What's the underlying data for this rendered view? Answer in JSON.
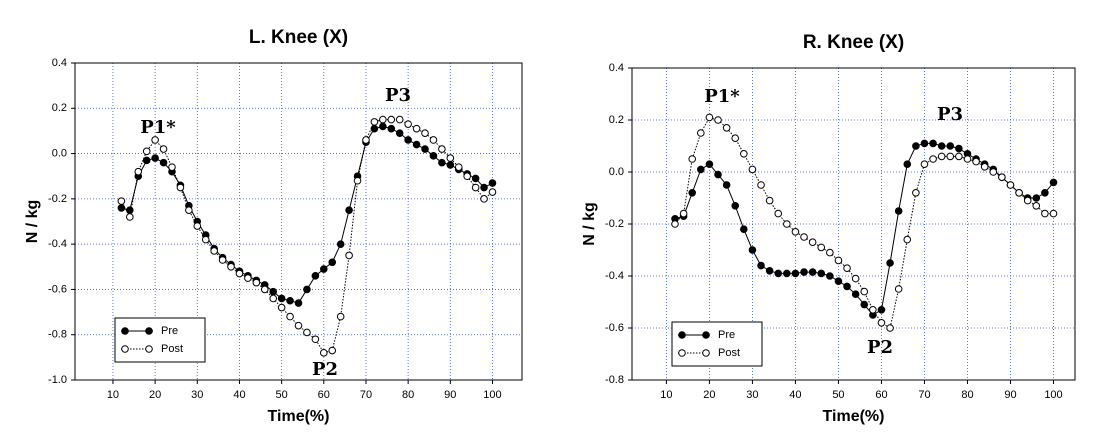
{
  "chart_data": [
    {
      "type": "line",
      "title": "L. Knee (X)",
      "xlabel": "Time(%)",
      "ylabel": "N / kg",
      "x": [
        12,
        14,
        16,
        18,
        20,
        22,
        24,
        26,
        28,
        30,
        32,
        34,
        36,
        38,
        40,
        42,
        44,
        46,
        48,
        50,
        52,
        54,
        56,
        58,
        60,
        62,
        64,
        66,
        68,
        70,
        72,
        74,
        76,
        78,
        80,
        82,
        84,
        86,
        88,
        90,
        92,
        94,
        96,
        98,
        100
      ],
      "series": [
        {
          "name": "Pre",
          "color": "#000000",
          "style": "solid",
          "marker_fill": "#000000",
          "values": [
            -0.24,
            -0.25,
            -0.1,
            -0.03,
            -0.02,
            -0.04,
            -0.08,
            -0.14,
            -0.23,
            -0.3,
            -0.36,
            -0.42,
            -0.46,
            -0.49,
            -0.52,
            -0.54,
            -0.56,
            -0.58,
            -0.61,
            -0.64,
            -0.65,
            -0.66,
            -0.6,
            -0.54,
            -0.51,
            -0.48,
            -0.4,
            -0.25,
            -0.1,
            0.05,
            0.11,
            0.12,
            0.11,
            0.09,
            0.06,
            0.04,
            0.02,
            -0.01,
            -0.04,
            -0.05,
            -0.07,
            -0.09,
            -0.11,
            -0.15,
            -0.13
          ]
        },
        {
          "name": "Post",
          "color": "#000000",
          "style": "dotted",
          "marker_fill": "#ffffff",
          "values": [
            -0.21,
            -0.28,
            -0.08,
            0.01,
            0.06,
            0.02,
            -0.06,
            -0.15,
            -0.25,
            -0.32,
            -0.38,
            -0.43,
            -0.47,
            -0.5,
            -0.53,
            -0.55,
            -0.57,
            -0.6,
            -0.64,
            -0.68,
            -0.72,
            -0.76,
            -0.79,
            -0.82,
            -0.88,
            -0.87,
            -0.72,
            -0.45,
            -0.12,
            0.06,
            0.14,
            0.15,
            0.15,
            0.15,
            0.13,
            0.11,
            0.09,
            0.06,
            0.02,
            -0.02,
            -0.06,
            -0.1,
            -0.15,
            -0.2,
            -0.17
          ]
        }
      ],
      "xlim": [
        1,
        107
      ],
      "xticks": [
        10,
        20,
        30,
        40,
        50,
        60,
        70,
        80,
        90,
        100
      ],
      "ylim": [
        -1.0,
        0.4
      ],
      "yticks": [
        {
          "value": -1.0,
          "label": "-1.0"
        },
        -0.8,
        -0.6,
        -0.4,
        -0.2,
        {
          "value": 0,
          "label": "0.0"
        },
        0.2,
        0.4
      ],
      "grid": true,
      "legend": "lower left",
      "annotations": [
        "P1*",
        "P2",
        "P3"
      ]
    },
    {
      "type": "line",
      "title": "R. Knee (X)",
      "xlabel": "Time(%)",
      "ylabel": "N / kg",
      "x": [
        12,
        14,
        16,
        18,
        20,
        22,
        24,
        26,
        28,
        30,
        32,
        34,
        36,
        38,
        40,
        42,
        44,
        46,
        48,
        50,
        52,
        54,
        56,
        58,
        60,
        62,
        64,
        66,
        68,
        70,
        72,
        74,
        76,
        78,
        80,
        82,
        84,
        86,
        88,
        90,
        92,
        94,
        96,
        98,
        100
      ],
      "series": [
        {
          "name": "Pre",
          "color": "#000000",
          "style": "solid",
          "marker_fill": "#000000",
          "values": [
            -0.18,
            -0.17,
            -0.08,
            0.01,
            0.03,
            -0.01,
            -0.05,
            -0.13,
            -0.22,
            -0.3,
            -0.36,
            -0.38,
            -0.39,
            -0.39,
            -0.39,
            -0.385,
            -0.385,
            -0.39,
            -0.4,
            -0.42,
            -0.44,
            -0.47,
            -0.51,
            -0.55,
            -0.53,
            -0.35,
            -0.15,
            0.03,
            0.1,
            0.11,
            0.11,
            0.1,
            0.1,
            0.09,
            0.07,
            0.05,
            0.03,
            0.01,
            -0.02,
            -0.05,
            -0.08,
            -0.1,
            -0.1,
            -0.08,
            -0.04
          ]
        },
        {
          "name": "Post",
          "color": "#000000",
          "style": "dotted",
          "marker_fill": "#ffffff",
          "values": [
            -0.2,
            -0.16,
            0.05,
            0.15,
            0.21,
            0.2,
            0.17,
            0.13,
            0.07,
            0.01,
            -0.05,
            -0.11,
            -0.16,
            -0.2,
            -0.23,
            -0.25,
            -0.27,
            -0.29,
            -0.31,
            -0.34,
            -0.37,
            -0.41,
            -0.46,
            -0.53,
            -0.58,
            -0.6,
            -0.45,
            -0.26,
            -0.08,
            0.03,
            0.05,
            0.06,
            0.06,
            0.06,
            0.05,
            0.04,
            0.02,
            0,
            -0.02,
            -0.05,
            -0.08,
            -0.11,
            -0.13,
            -0.16,
            -0.16
          ]
        }
      ],
      "xlim": [
        2,
        105
      ],
      "xticks": [
        10,
        20,
        30,
        40,
        50,
        60,
        70,
        80,
        90,
        100
      ],
      "ylim": [
        -0.8,
        0.4
      ],
      "yticks": [
        {
          "value": -0.8,
          "label": "-0.8"
        },
        -0.6,
        -0.4,
        -0.2,
        {
          "value": 0,
          "label": "0.0"
        },
        0.2,
        0.4
      ],
      "grid": true,
      "legend": "lower left",
      "annotations": [
        "P1*",
        "P2",
        "P3"
      ]
    }
  ]
}
